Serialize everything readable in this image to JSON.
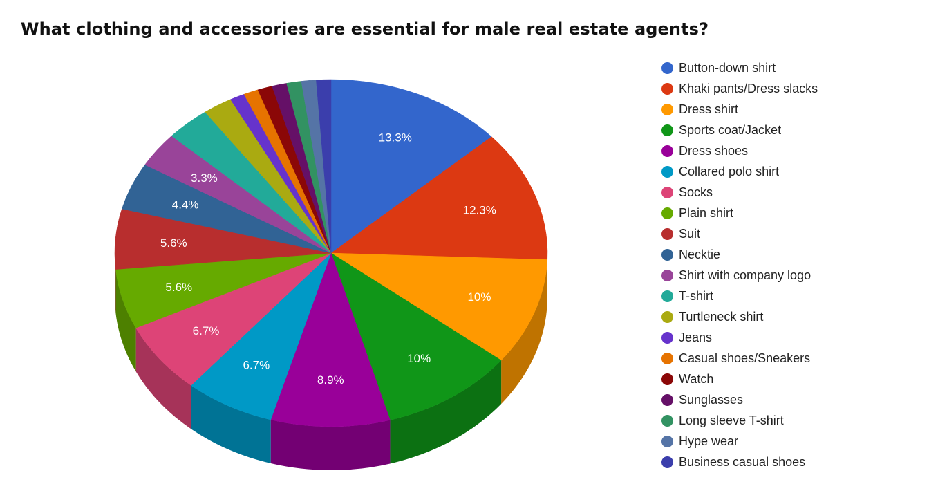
{
  "title": "What clothing and accessories are essential for male real estate agents?",
  "chart_data": {
    "type": "pie",
    "title": "What clothing and accessories are essential for male real estate agents?",
    "style": "3d",
    "legend_position": "right",
    "slices": [
      {
        "name": "Button-down shirt",
        "value": 13.3,
        "label": "13.3%",
        "color": "#3366cc"
      },
      {
        "name": "Khaki pants/Dress slacks",
        "value": 12.3,
        "label": "12.3%",
        "color": "#dc3912"
      },
      {
        "name": "Dress shirt",
        "value": 10,
        "label": "10%",
        "color": "#ff9900"
      },
      {
        "name": "Sports coat/Jacket",
        "value": 10,
        "label": "10%",
        "color": "#109618"
      },
      {
        "name": "Dress shoes",
        "value": 8.9,
        "label": "8.9%",
        "color": "#990099"
      },
      {
        "name": "Collared polo shirt",
        "value": 6.7,
        "label": "6.7%",
        "color": "#0099c6"
      },
      {
        "name": "Socks",
        "value": 6.7,
        "label": "6.7%",
        "color": "#dd4477"
      },
      {
        "name": "Plain shirt",
        "value": 5.6,
        "label": "5.6%",
        "color": "#66aa00"
      },
      {
        "name": "Suit",
        "value": 5.6,
        "label": "5.6%",
        "color": "#b82e2e"
      },
      {
        "name": "Necktie",
        "value": 4.4,
        "label": "4.4%",
        "color": "#316395"
      },
      {
        "name": "Shirt with company logo",
        "value": 3.3,
        "label": "3.3%",
        "color": "#994499"
      },
      {
        "name": "T-shirt",
        "value": 3.3,
        "label": "",
        "color": "#22aa99"
      },
      {
        "name": "Turtleneck shirt",
        "value": 2.2,
        "label": "",
        "color": "#aaaa11"
      },
      {
        "name": "Jeans",
        "value": 1.1,
        "label": "",
        "color": "#6633cc"
      },
      {
        "name": "Casual shoes/Sneakers",
        "value": 1.1,
        "label": "",
        "color": "#e67300"
      },
      {
        "name": "Watch",
        "value": 1.1,
        "label": "",
        "color": "#8b0707"
      },
      {
        "name": "Sunglasses",
        "value": 1.1,
        "label": "",
        "color": "#651067"
      },
      {
        "name": "Long sleeve T-shirt",
        "value": 1.1,
        "label": "",
        "color": "#329262"
      },
      {
        "name": "Hype wear",
        "value": 1.1,
        "label": "",
        "color": "#5574a6"
      },
      {
        "name": "Business casual shoes",
        "value": 1.1,
        "label": "",
        "color": "#3b3eac"
      }
    ]
  }
}
